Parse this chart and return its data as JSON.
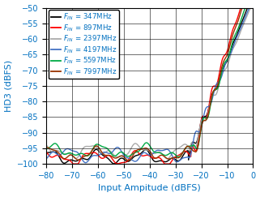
{
  "title": "",
  "xlabel": "Input Ampitude (dBFS)",
  "ylabel": "HD3 (dBFS)",
  "xlim": [
    -80,
    0
  ],
  "ylim": [
    -100,
    -50
  ],
  "xticks": [
    -80,
    -70,
    -60,
    -50,
    -40,
    -30,
    -20,
    -10,
    0
  ],
  "yticks": [
    -100,
    -95,
    -90,
    -85,
    -80,
    -75,
    -70,
    -65,
    -60,
    -55,
    -50
  ],
  "grid": true,
  "legend_entries": [
    "$F_{IN}$ = 347MHz",
    "$F_{IN}$ = 897MHz",
    "$F_{IN}$ = 2397MHz",
    "$F_{IN}$ = 4197MHz",
    "$F_{IN}$ = 5597MHz",
    "$F_{IN}$ = 7997MHz"
  ],
  "line_colors": [
    "#000000",
    "#ff0000",
    "#aaaaaa",
    "#4472c4",
    "#00aa44",
    "#993300"
  ],
  "line_widths": [
    1.0,
    1.0,
    1.0,
    1.0,
    1.0,
    1.0
  ],
  "background_color": "#ffffff",
  "label_color": "#0070c0",
  "tick_fontsize": 7,
  "label_fontsize": 8,
  "legend_fontsize": 6.2
}
